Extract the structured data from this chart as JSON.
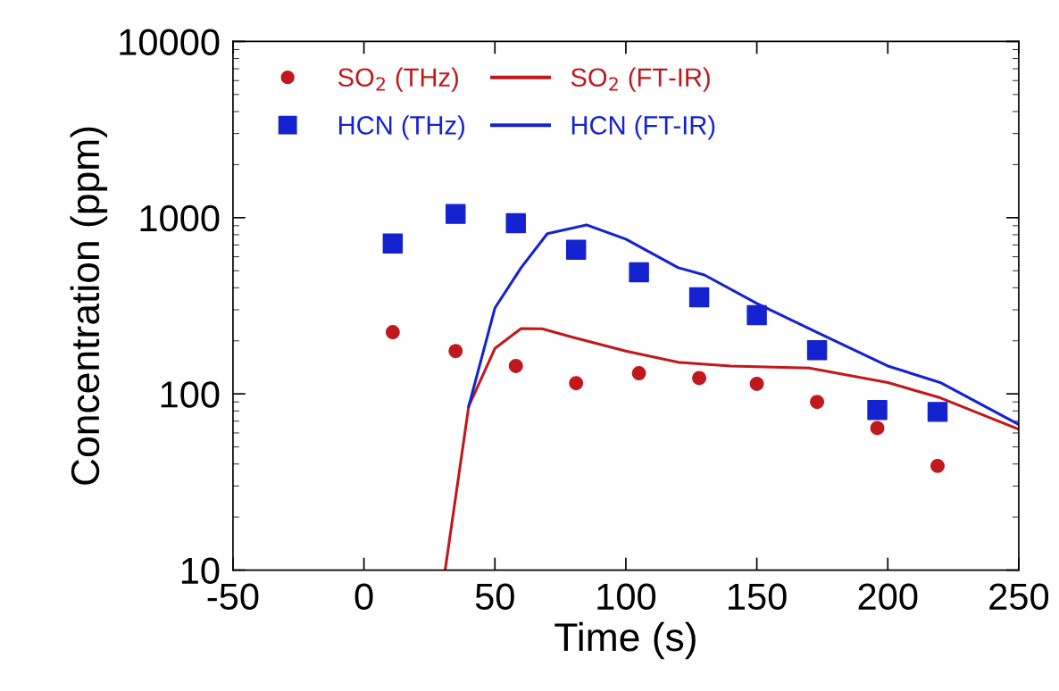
{
  "chart_data": {
    "type": "scatter",
    "xlabel": "Time (s)",
    "ylabel": "Concentration (ppm)",
    "log": "y",
    "xlim": [
      -50,
      250
    ],
    "xticks": [
      -50,
      0,
      50,
      100,
      150,
      200,
      250
    ],
    "ylim": [
      10,
      10000
    ],
    "yticks": [
      10,
      100,
      1000,
      10000
    ],
    "grid": false,
    "legend": "top left",
    "series": [
      {
        "name": "SO$_{2}$ (THz)",
        "marker": "circle",
        "color": "#c0181c",
        "x": [
          11,
          35,
          58,
          81,
          105,
          128,
          150,
          173,
          196,
          219
        ],
        "values": [
          224,
          175,
          144,
          115,
          131,
          123,
          114,
          90,
          64,
          39
        ]
      },
      {
        "name": "SO$_{2}$ (FT-IR)",
        "type": "line",
        "line_style": "solid",
        "color": "#c0181c",
        "x": [
          31,
          40,
          50,
          60,
          68,
          80,
          100,
          120,
          140,
          170,
          200,
          220,
          250
        ],
        "values": [
          10,
          85,
          181,
          235,
          234,
          209,
          175,
          151,
          144,
          140,
          116,
          95,
          63
        ]
      },
      {
        "name": "HCN (THz)",
        "marker": "square",
        "color": "#1422d0",
        "x": [
          11,
          35,
          58,
          81,
          105,
          128,
          150,
          173,
          196,
          219
        ],
        "values": [
          713,
          1050,
          930,
          657,
          490,
          353,
          280,
          177,
          81,
          79
        ]
      },
      {
        "name": "HCN (FT-IR)",
        "type": "line",
        "line_style": "solid",
        "color": "#1422d0",
        "x": [
          40,
          50,
          60,
          70,
          85,
          100,
          120,
          130,
          150,
          175,
          200,
          220,
          250
        ],
        "values": [
          85,
          307,
          520,
          811,
          910,
          755,
          520,
          473,
          326,
          216,
          144,
          116,
          67
        ]
      }
    ]
  }
}
